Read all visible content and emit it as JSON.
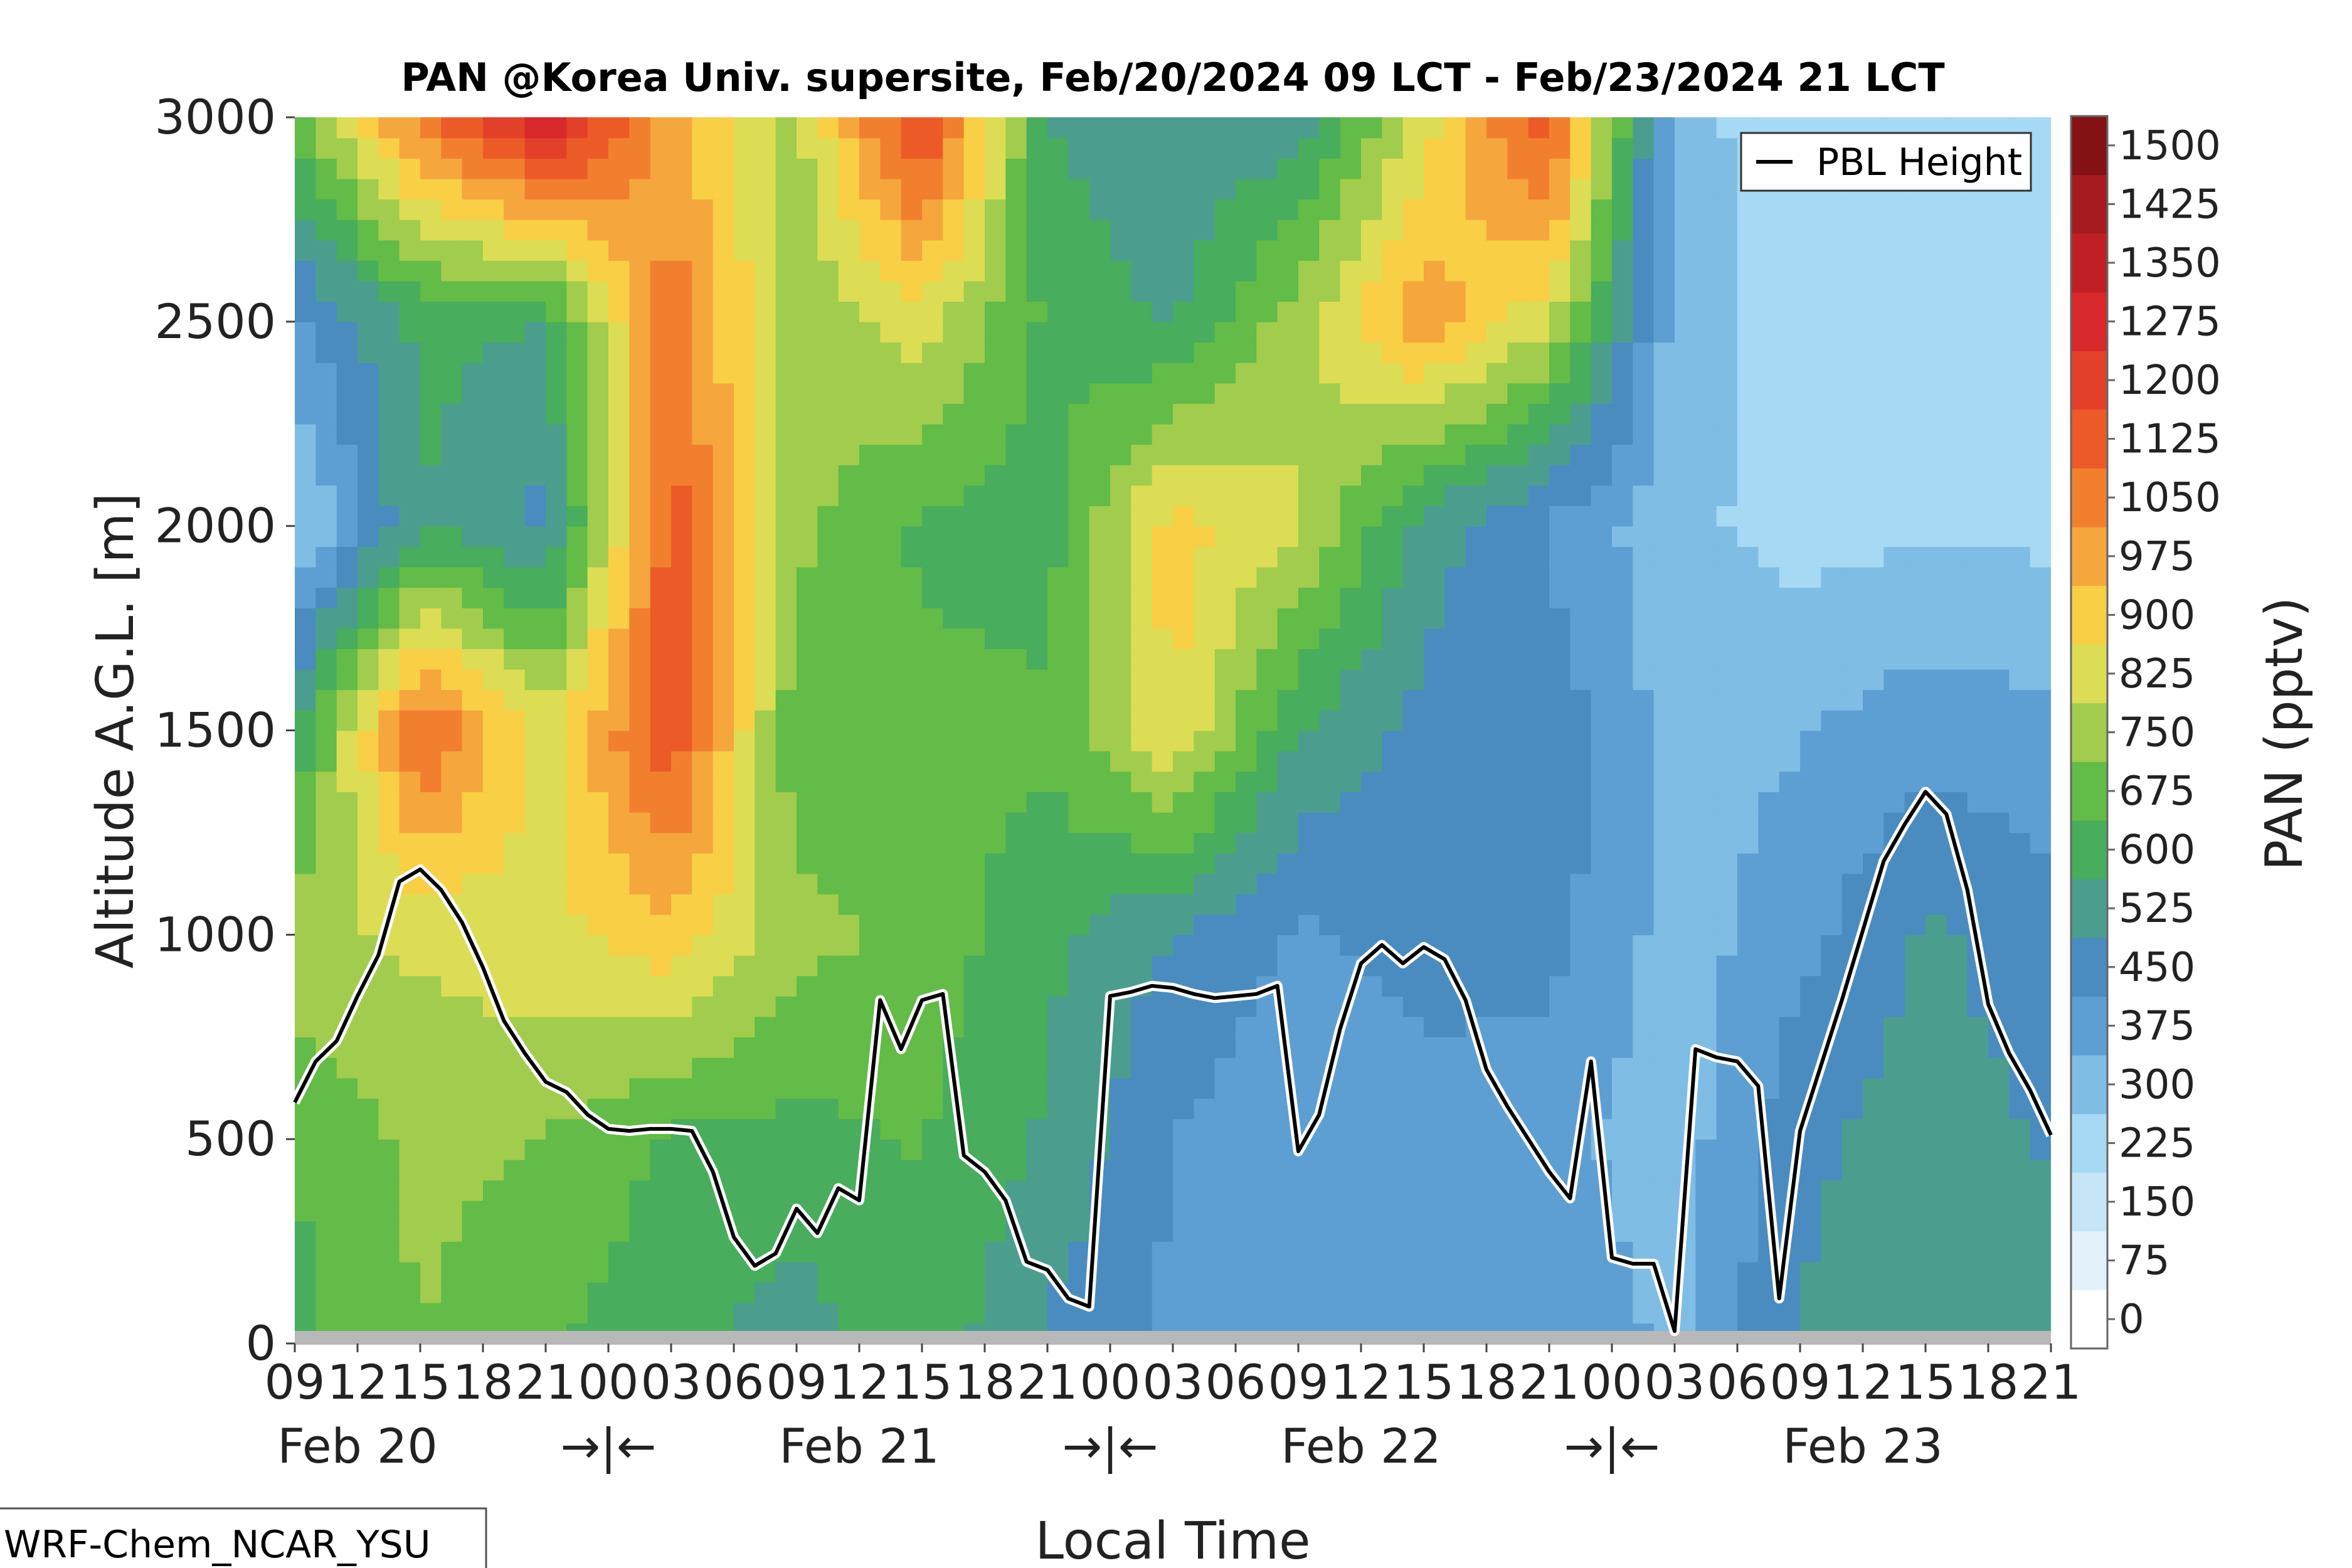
{
  "chart_data": {
    "type": "heatmap",
    "title": "PAN @Korea Univ. supersite, Feb/20/2024 09 LCT - Feb/23/2024 21 LCT",
    "xlabel": "Local Time",
    "ylabel": "Altitude A.G.L. [m]",
    "colorbar_label": "PAN (pptv)",
    "model_label": "WRF-Chem_NCAR_YSU",
    "ylim": [
      0,
      3000
    ],
    "y_ticks": [
      "0",
      "500",
      "1000",
      "1500",
      "2000",
      "2500",
      "3000"
    ],
    "x_hour_ticks": [
      "09",
      "12",
      "15",
      "18",
      "21",
      "00",
      "03",
      "06",
      "09",
      "12",
      "15",
      "18",
      "21",
      "00",
      "03",
      "06",
      "09",
      "12",
      "15",
      "18",
      "21",
      "00",
      "03",
      "06",
      "09",
      "12",
      "15",
      "18",
      "21"
    ],
    "x_day_labels": [
      "Feb 20",
      "→|←",
      "Feb 21",
      "→|←",
      "Feb 22",
      "→|←",
      "Feb 23"
    ],
    "x_range_hours": [
      0,
      84
    ],
    "colorbar_levels": [
      "0",
      "75",
      "150",
      "225",
      "300",
      "375",
      "450",
      "525",
      "600",
      "675",
      "750",
      "825",
      "900",
      "975",
      "1050",
      "1125",
      "1200",
      "1275",
      "1350",
      "1425",
      "1500"
    ],
    "colorbar_colors": [
      "#ffffff",
      "#e3f1fb",
      "#c6e6f8",
      "#a6d9f3",
      "#7fbde5",
      "#5d9fd3",
      "#4a8cc0",
      "#4b9e8e",
      "#48ad5c",
      "#63bb48",
      "#a2cc4d",
      "#dcdd55",
      "#f8cf45",
      "#f5a63d",
      "#f27f2e",
      "#ec5b27",
      "#e3402a",
      "#d7282b",
      "#c01f25",
      "#a51b1f",
      "#851214"
    ],
    "legend": {
      "entries": [
        "PBL Height"
      ],
      "position": "top-right"
    },
    "pbl_height": {
      "name": "PBL Height",
      "x_hours": [
        0,
        1,
        2,
        3,
        4,
        5,
        6,
        7,
        8,
        9,
        10,
        11,
        12,
        13,
        14,
        15,
        16,
        17,
        18,
        19,
        20,
        21,
        22,
        23,
        24,
        25,
        26,
        27,
        28,
        29,
        30,
        31,
        32,
        33,
        34,
        35,
        36,
        37,
        38,
        39,
        40,
        41,
        42,
        43,
        44,
        45,
        46,
        47,
        48,
        49,
        50,
        51,
        52,
        53,
        54,
        55,
        56,
        57,
        58,
        59,
        60,
        61,
        62,
        63,
        64,
        65,
        66,
        67,
        68,
        69,
        70,
        71,
        72,
        73,
        74,
        75,
        76,
        77,
        78,
        79,
        80,
        81,
        82,
        83,
        84
      ],
      "values": [
        590,
        690,
        740,
        850,
        950,
        1130,
        1160,
        1110,
        1030,
        920,
        790,
        710,
        640,
        615,
        560,
        525,
        520,
        525,
        525,
        520,
        420,
        260,
        190,
        220,
        330,
        270,
        380,
        350,
        840,
        720,
        840,
        855,
        460,
        420,
        350,
        200,
        180,
        110,
        90,
        850,
        860,
        875,
        870,
        855,
        845,
        850,
        855,
        875,
        470,
        560,
        770,
        930,
        975,
        930,
        970,
        940,
        840,
        670,
        580,
        500,
        420,
        355,
        690,
        210,
        195,
        195,
        30,
        720,
        700,
        690,
        630,
        110,
        520,
        680,
        840,
        1010,
        1180,
        1270,
        1350,
        1295,
        1110,
        830,
        710,
        620,
        510
      ]
    },
    "pan_field": {
      "x_hours": [
        0,
        6,
        12,
        18,
        24,
        30,
        36,
        42,
        48,
        54,
        60,
        66,
        72,
        78,
        84
      ],
      "y_m": [
        0,
        500,
        1000,
        1500,
        2000,
        2500,
        3000
      ],
      "values_pptv": [
        [
          650,
          750,
          680,
          630,
          560,
          660,
          510,
          430,
          420,
          420,
          430,
          360,
          530,
          560,
          540
        ],
        [
          680,
          770,
          750,
          660,
          650,
          680,
          590,
          450,
          390,
          430,
          400,
          330,
          510,
          560,
          520
        ],
        [
          800,
          840,
          880,
          950,
          780,
          720,
          620,
          520,
          440,
          470,
          480,
          340,
          420,
          540,
          480
        ],
        [
          600,
          1150,
          860,
          1200,
          690,
          700,
          690,
          900,
          600,
          500,
          500,
          340,
          370,
          420,
          400
        ],
        [
          270,
          600,
          500,
          1170,
          770,
          660,
          640,
          940,
          830,
          560,
          440,
          320,
          270,
          290,
          280
        ],
        [
          430,
          620,
          600,
          1100,
          770,
          860,
          660,
          590,
          800,
          1030,
          840,
          340,
          260,
          260,
          260
        ],
        [
          700,
          1100,
          1350,
          1000,
          800,
          1250,
          600,
          520,
          560,
          860,
          1200,
          320,
          270,
          270,
          270
        ]
      ]
    }
  }
}
